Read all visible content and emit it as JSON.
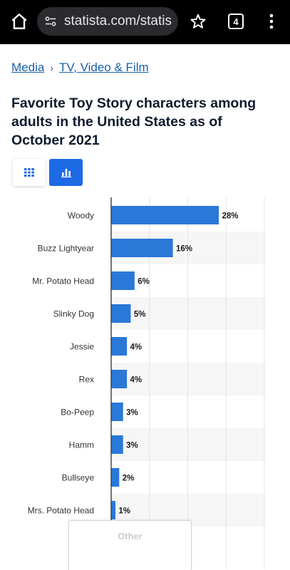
{
  "browser": {
    "url": "statista.com/statis",
    "tab_count": "4",
    "icons": [
      "home-icon",
      "tune-icon",
      "star-icon",
      "tabs-icon",
      "more-vert-icon"
    ]
  },
  "breadcrumb": {
    "items": [
      {
        "label": "Media"
      },
      {
        "label": "TV, Video & Film"
      }
    ],
    "separator": "›"
  },
  "title": "Favorite Toy Story characters among adults in the United States as of October 2021",
  "view_toggle": {
    "options": [
      "table-view",
      "chart-view"
    ],
    "active": "chart-view"
  },
  "colors": {
    "bar": "#2a78d8",
    "accent": "#1d6ae5",
    "label": "#333333",
    "value": "#1a1a1a",
    "stripe": "#f6f6f6"
  },
  "chart_data": {
    "type": "bar",
    "orientation": "horizontal",
    "categories": [
      "Woody",
      "Buzz Lightyear",
      "Mr. Potato Head",
      "Slinky Dog",
      "Jessie",
      "Rex",
      "Bo-Peep",
      "Hamm",
      "Bullseye",
      "Mrs. Potato Head"
    ],
    "values": [
      28,
      16,
      6,
      5,
      4,
      4,
      3,
      3,
      2,
      1
    ],
    "value_labels": [
      "28%",
      "16%",
      "6%",
      "5%",
      "4%",
      "4%",
      "3%",
      "3%",
      "2%",
      "1%"
    ],
    "unit": "%",
    "xlim": [
      0,
      40
    ],
    "grid": true
  },
  "bottom_tab": {
    "label": "Other"
  }
}
